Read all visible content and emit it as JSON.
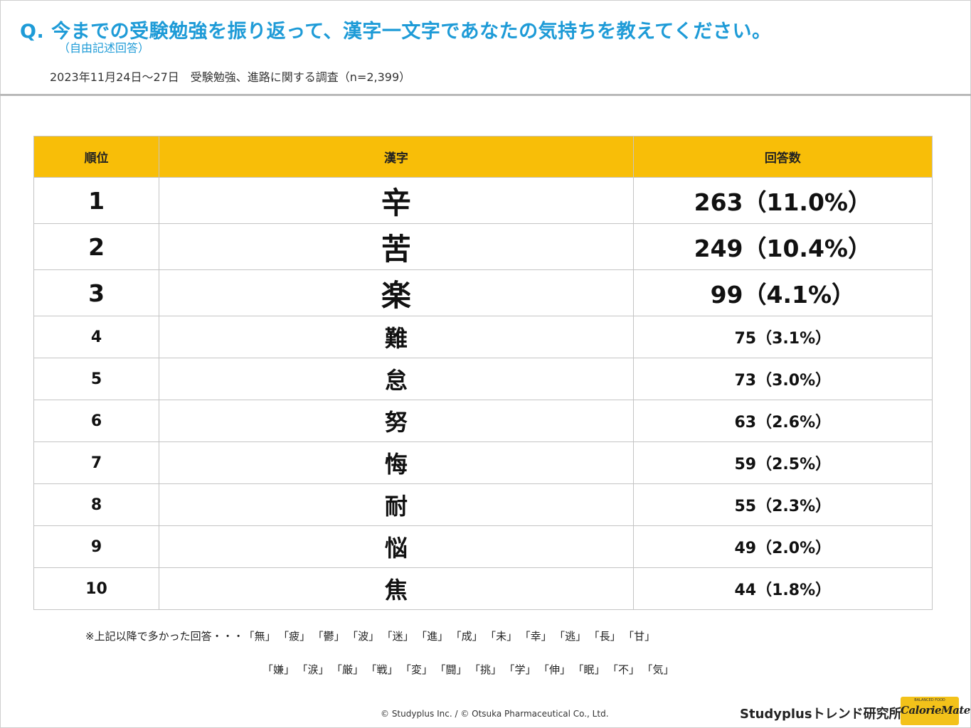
{
  "header": {
    "question": "Q. 今までの受験勉強を振り返って、漢字一文字であなたの気持ちを教えてください。",
    "question_note": "（自由記述回答）",
    "survey_info": "2023年11月24日～27日　受験勉強、進路に関する調査（n=2,399）"
  },
  "table": {
    "headers": [
      "順位",
      "漢字",
      "回答数"
    ],
    "rows": [
      {
        "rank": "1",
        "kanji": "辛",
        "count": "263（11.0%）"
      },
      {
        "rank": "2",
        "kanji": "苦",
        "count": "249（10.4%）"
      },
      {
        "rank": "3",
        "kanji": "楽",
        "count": "99（4.1%）"
      },
      {
        "rank": "4",
        "kanji": "難",
        "count": "75（3.1%）"
      },
      {
        "rank": "5",
        "kanji": "怠",
        "count": "73（3.0%）"
      },
      {
        "rank": "6",
        "kanji": "努",
        "count": "63（2.6%）"
      },
      {
        "rank": "7",
        "kanji": "悔",
        "count": "59（2.5%）"
      },
      {
        "rank": "8",
        "kanji": "耐",
        "count": "55（2.3%）"
      },
      {
        "rank": "9",
        "kanji": "悩",
        "count": "49（2.0%）"
      },
      {
        "rank": "10",
        "kanji": "焦",
        "count": "44（1.8%）"
      }
    ]
  },
  "others": {
    "prefix": "※上記以降で多かった回答・・・",
    "line1": [
      "「無」",
      "「疲」",
      "「鬱」",
      "「波」",
      "「迷」",
      "「進」",
      "「成」",
      "「未」",
      "「幸」",
      "「逃」",
      "「長」",
      "「甘」"
    ],
    "line2": [
      "「嫌」",
      "「涙」",
      "「厳」",
      "「戦」",
      "「変」",
      "「闘」",
      "「挑」",
      "「学」",
      "「伸」",
      "「眠」",
      "「不」",
      "「気」"
    ]
  },
  "footer": {
    "copyright": "© Studyplus Inc.  / © Otsuka Pharmaceutical Co., Ltd.",
    "brand": "Studyplusトレンド研究所",
    "logo_text": "CalorieMate",
    "logo_sub": "BALANCED FOOD"
  }
}
